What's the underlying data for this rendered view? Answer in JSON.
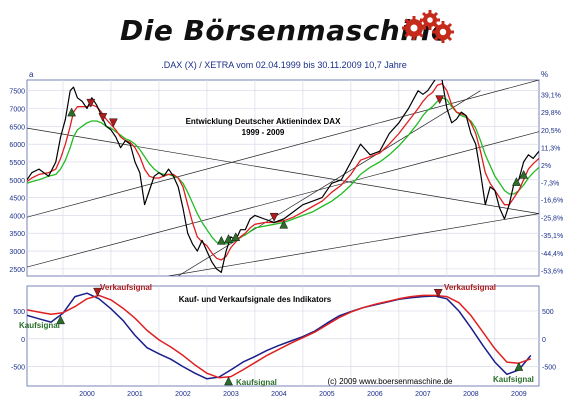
{
  "brand": {
    "title": "Die Börsenmaschine",
    "logo_icon": "gears-logo-icon"
  },
  "subtitle": ".DAX (X) / XETRA vom 02.04.1999 bis 30.11.2009 10,7 Jahre",
  "upper_panel": {
    "annotation_title": "Entwicklung Deutscher Aktienindex DAX",
    "annotation_years": "1999 - 2009",
    "corner_left": "a",
    "corner_right": "%"
  },
  "lower_panel": {
    "annotation": "Kauf- und Verkaufsignale des Indikators",
    "copyright": "(c) 2009 www.boersenmaschine.de",
    "signals": [
      "Kaufsignal",
      "Verkaufsignal",
      "Kaufsignal",
      "Verkaufsignal",
      "Kaufsignal"
    ]
  },
  "colors": {
    "price": "#000000",
    "ma_fast": "#e02020",
    "ma_slow": "#22bb22",
    "osc_fast": "#1a1f8a",
    "osc_slow": "#e02020",
    "signal_up": "#2a6e2a",
    "signal_down": "#b01c1c"
  },
  "chart_data": [
    {
      "type": "line",
      "title": "Entwicklung Deutscher Aktienindex DAX",
      "xlim": [
        1999.25,
        2009.92
      ],
      "ylim": [
        2300,
        7800
      ],
      "y_ticks": [
        2500,
        3000,
        3500,
        4000,
        4500,
        5000,
        5500,
        6000,
        6500,
        7000,
        7500
      ],
      "right_ticks": [
        {
          "label": "39,1%",
          "y": 7390
        },
        {
          "label": "29,8%",
          "y": 6900
        },
        {
          "label": "20,5%",
          "y": 6400
        },
        {
          "label": "11,3%",
          "y": 5910
        },
        {
          "label": "2%",
          "y": 5420
        },
        {
          "label": "-7,3%",
          "y": 4930
        },
        {
          "label": "-16,6%",
          "y": 4440
        },
        {
          "label": "-25,8%",
          "y": 3940
        },
        {
          "label": "-35,1%",
          "y": 3450
        },
        {
          "label": "-44,4%",
          "y": 2950
        },
        {
          "label": "-53,6%",
          "y": 2460
        }
      ],
      "x": [
        1999.25,
        1999.35,
        1999.5,
        1999.7,
        1999.85,
        1999.95,
        2000.05,
        2000.15,
        2000.22,
        2000.3,
        2000.4,
        2000.5,
        2000.6,
        2000.7,
        2000.8,
        2000.9,
        2001.0,
        2001.1,
        2001.2,
        2001.3,
        2001.4,
        2001.5,
        2001.6,
        2001.7,
        2001.8,
        2001.9,
        2002.0,
        2002.1,
        2002.2,
        2002.3,
        2002.4,
        2002.5,
        2002.6,
        2002.7,
        2002.8,
        2002.9,
        2003.0,
        2003.1,
        2003.2,
        2003.3,
        2003.4,
        2003.5,
        2003.6,
        2003.7,
        2003.8,
        2003.9,
        2004.0,
        2004.2,
        2004.4,
        2004.6,
        2004.8,
        2005.0,
        2005.2,
        2005.4,
        2005.6,
        2005.8,
        2006.0,
        2006.2,
        2006.4,
        2006.6,
        2006.8,
        2007.0,
        2007.2,
        2007.4,
        2007.5,
        2007.6,
        2007.7,
        2007.8,
        2007.9,
        2008.0,
        2008.1,
        2008.2,
        2008.3,
        2008.4,
        2008.5,
        2008.6,
        2008.7,
        2008.8,
        2008.9,
        2009.0,
        2009.1,
        2009.2,
        2009.3,
        2009.4,
        2009.5,
        2009.6,
        2009.7,
        2009.8,
        2009.92
      ],
      "series": [
        {
          "id": "price",
          "values": [
            5000,
            5200,
            5300,
            5100,
            5500,
            6200,
            6700,
            7500,
            7600,
            7300,
            7200,
            7000,
            7300,
            7100,
            6800,
            6500,
            6400,
            6200,
            5900,
            6100,
            6000,
            5500,
            5200,
            4300,
            4700,
            5100,
            5200,
            5100,
            5300,
            5100,
            4800,
            4200,
            3500,
            3200,
            3000,
            3300,
            3000,
            2700,
            2500,
            2400,
            3000,
            3400,
            3300,
            3600,
            3600,
            3900,
            4000,
            3900,
            3800,
            3900,
            4100,
            4300,
            4400,
            4500,
            4900,
            5000,
            5500,
            6000,
            5700,
            5800,
            6300,
            6600,
            7000,
            7500,
            7400,
            7500,
            7700,
            7900,
            7800,
            7000,
            6600,
            6700,
            6900,
            6800,
            6300,
            6000,
            5200,
            4300,
            4800,
            4700,
            4200,
            3900,
            4300,
            4900,
            5000,
            5500,
            5700,
            5600,
            5800
          ]
        },
        {
          "id": "ma_fast",
          "values": [
            4950,
            5050,
            5150,
            5200,
            5300,
            5600,
            6000,
            6500,
            6900,
            7050,
            7050,
            7050,
            7100,
            7050,
            6900,
            6700,
            6550,
            6400,
            6200,
            6100,
            6050,
            5900,
            5650,
            5300,
            5100,
            5050,
            5050,
            5100,
            5150,
            5150,
            5050,
            4800,
            4300,
            3800,
            3400,
            3250,
            3150,
            2950,
            2800,
            2750,
            2850,
            3100,
            3250,
            3400,
            3500,
            3650,
            3750,
            3800,
            3800,
            3850,
            3950,
            4100,
            4250,
            4400,
            4650,
            4850,
            5150,
            5550,
            5650,
            5750,
            6000,
            6300,
            6650,
            7000,
            7200,
            7350,
            7450,
            7650,
            7700,
            7500,
            7100,
            6900,
            6850,
            6800,
            6600,
            6300,
            5800,
            5200,
            4900,
            4700,
            4500,
            4300,
            4300,
            4500,
            4700,
            5000,
            5300,
            5450,
            5600
          ]
        },
        {
          "id": "ma_slow",
          "values": [
            4900,
            4950,
            5000,
            5100,
            5150,
            5300,
            5550,
            5900,
            6200,
            6400,
            6500,
            6600,
            6650,
            6650,
            6600,
            6500,
            6450,
            6350,
            6250,
            6150,
            6100,
            6000,
            5850,
            5650,
            5450,
            5300,
            5200,
            5150,
            5150,
            5100,
            5050,
            4900,
            4650,
            4350,
            4050,
            3800,
            3600,
            3400,
            3250,
            3200,
            3200,
            3250,
            3300,
            3400,
            3450,
            3550,
            3650,
            3700,
            3750,
            3800,
            3900,
            4000,
            4100,
            4250,
            4400,
            4600,
            4850,
            5150,
            5350,
            5500,
            5700,
            5950,
            6250,
            6600,
            6800,
            6950,
            7050,
            7200,
            7300,
            7250,
            7050,
            6900,
            6800,
            6750,
            6650,
            6450,
            6100,
            5700,
            5400,
            5100,
            4900,
            4700,
            4600,
            4600,
            4700,
            4850,
            5050,
            5200,
            5350
          ]
        }
      ],
      "trend_lines": [
        {
          "x": [
            1999.25,
            2009.92
          ],
          "y": [
            3950,
            7800
          ]
        },
        {
          "x": [
            1999.25,
            2009.92
          ],
          "y": [
            2550,
            6350
          ]
        },
        {
          "x": [
            2002.2,
            2009.92
          ],
          "y": [
            2300,
            4050
          ]
        },
        {
          "x": [
            2002.4,
            2008.7
          ],
          "y": [
            2300,
            7500
          ]
        },
        {
          "x": [
            1999.25,
            2009.92
          ],
          "y": [
            6450,
            4050
          ]
        }
      ],
      "markers": [
        {
          "x": 2000.18,
          "y": 6900,
          "kind": "buy"
        },
        {
          "x": 2000.58,
          "y": 7150,
          "kind": "sell"
        },
        {
          "x": 2000.83,
          "y": 6750,
          "kind": "sell"
        },
        {
          "x": 2001.05,
          "y": 6600,
          "kind": "sell"
        },
        {
          "x": 2003.3,
          "y": 3300,
          "kind": "buy"
        },
        {
          "x": 2003.45,
          "y": 3350,
          "kind": "buy"
        },
        {
          "x": 2003.6,
          "y": 3400,
          "kind": "buy"
        },
        {
          "x": 2004.4,
          "y": 3950,
          "kind": "sell"
        },
        {
          "x": 2004.6,
          "y": 3750,
          "kind": "buy"
        },
        {
          "x": 2007.85,
          "y": 7250,
          "kind": "sell"
        },
        {
          "x": 2009.45,
          "y": 4950,
          "kind": "buy"
        },
        {
          "x": 2009.6,
          "y": 5150,
          "kind": "buy"
        }
      ]
    },
    {
      "type": "line",
      "title": "Kauf- und Verkaufsignale des Indikators",
      "xlim": [
        1999.25,
        2009.92
      ],
      "ylim": [
        -850,
        950
      ],
      "y_ticks": [
        500,
        0,
        -500
      ],
      "x_ticks": [
        "2000",
        "2001",
        "2002",
        "2003",
        "2004",
        "2005",
        "2006",
        "2007",
        "2008",
        "2009"
      ],
      "x": [
        1999.25,
        1999.5,
        1999.75,
        2000.0,
        2000.25,
        2000.5,
        2000.75,
        2001.0,
        2001.25,
        2001.5,
        2001.75,
        2002.0,
        2002.25,
        2002.5,
        2002.75,
        2003.0,
        2003.25,
        2003.5,
        2003.75,
        2004.0,
        2004.25,
        2004.5,
        2004.75,
        2005.0,
        2005.25,
        2005.5,
        2005.75,
        2006.0,
        2006.25,
        2006.5,
        2006.75,
        2007.0,
        2007.25,
        2007.5,
        2007.75,
        2008.0,
        2008.25,
        2008.5,
        2008.75,
        2009.0,
        2009.25,
        2009.5,
        2009.75
      ],
      "series": [
        {
          "id": "osc_fast",
          "values": [
            420,
            360,
            300,
            460,
            760,
            820,
            720,
            540,
            330,
            60,
            -160,
            -270,
            -370,
            -500,
            -620,
            -720,
            -690,
            -560,
            -420,
            -320,
            -210,
            -120,
            -40,
            40,
            140,
            280,
            410,
            490,
            560,
            610,
            660,
            710,
            740,
            760,
            770,
            720,
            500,
            200,
            -120,
            -420,
            -640,
            -560,
            -300
          ]
        },
        {
          "id": "osc_slow",
          "values": [
            520,
            480,
            440,
            470,
            580,
            720,
            780,
            700,
            550,
            370,
            150,
            -20,
            -150,
            -300,
            -470,
            -620,
            -700,
            -680,
            -560,
            -430,
            -300,
            -190,
            -80,
            20,
            120,
            250,
            380,
            480,
            560,
            620,
            670,
            720,
            760,
            780,
            780,
            760,
            650,
            420,
            120,
            -180,
            -420,
            -440,
            -360
          ]
        }
      ],
      "markers": [
        {
          "x": 1999.95,
          "y": 340,
          "kind": "buy",
          "label": "Kaufsignal"
        },
        {
          "x": 2000.72,
          "y": 840,
          "kind": "sell",
          "label": "Verkaufsignal"
        },
        {
          "x": 2003.45,
          "y": -760,
          "kind": "buy",
          "label": "Kaufsignal"
        },
        {
          "x": 2007.82,
          "y": 820,
          "kind": "sell",
          "label": "Verkaufsignal"
        },
        {
          "x": 2009.5,
          "y": -500,
          "kind": "buy",
          "label": "Kaufsignal"
        }
      ]
    }
  ]
}
